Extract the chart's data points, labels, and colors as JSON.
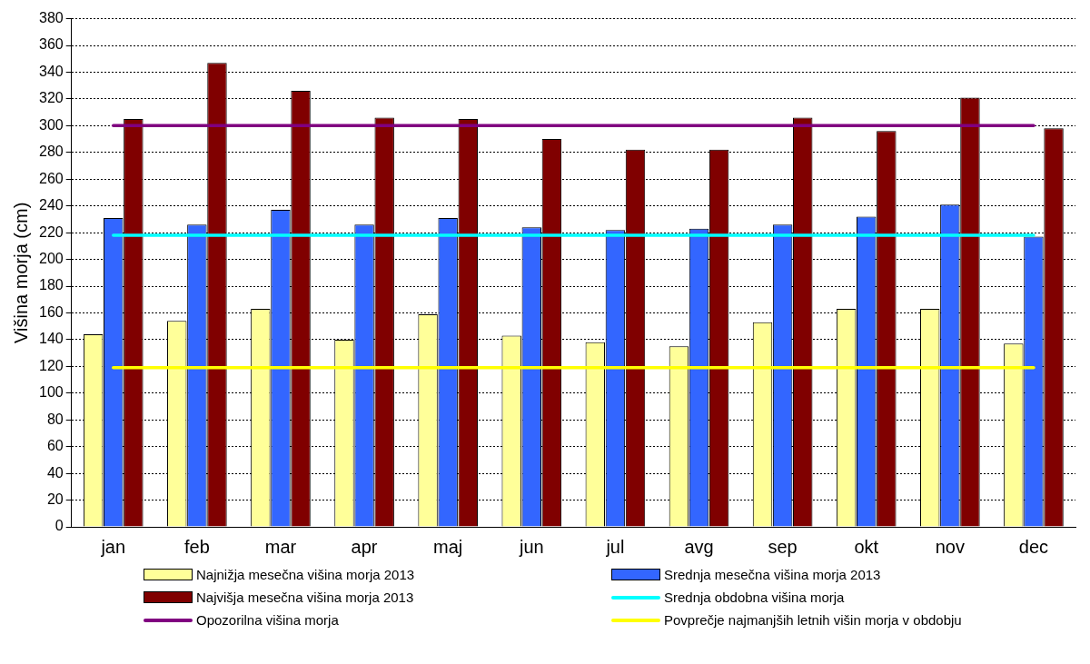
{
  "chart_data": {
    "type": "bar",
    "ylabel": "Višina morja (cm)",
    "categories": [
      "jan",
      "feb",
      "mar",
      "apr",
      "maj",
      "jun",
      "jul",
      "avg",
      "sep",
      "okt",
      "nov",
      "dec"
    ],
    "series": [
      {
        "name": "Najnižja mesečna višina morja 2013",
        "color": "#ffff99",
        "values": [
          144,
          154,
          163,
          140,
          159,
          143,
          138,
          135,
          153,
          163,
          163,
          137
        ]
      },
      {
        "name": "Srednja mesečna višina morja 2013",
        "color": "#3366ff",
        "values": [
          231,
          226,
          237,
          226,
          231,
          224,
          222,
          223,
          226,
          232,
          241,
          217
        ]
      },
      {
        "name": "Najvišja mesečna višina morja 2013",
        "color": "#800000",
        "values": [
          305,
          347,
          326,
          306,
          305,
          290,
          282,
          282,
          306,
          296,
          321,
          298
        ]
      }
    ],
    "ref_lines": [
      {
        "axis": "y",
        "value": 218,
        "label": "Srednja obdobna višina morja",
        "color": "#00ffff"
      },
      {
        "axis": "y",
        "value": 300,
        "label": "Opozorilna višina morja",
        "color": "#800080"
      },
      {
        "axis": "y",
        "value": 119,
        "label": "Povprečje najmanjših letnih višin morja v obdobju",
        "color": "#ffff00"
      }
    ],
    "ylim": [
      0,
      380
    ],
    "yticks": [
      0,
      20,
      40,
      60,
      80,
      100,
      120,
      140,
      160,
      180,
      200,
      220,
      240,
      260,
      280,
      300,
      320,
      340,
      360,
      380
    ],
    "grid": "y",
    "legend": "bottom"
  }
}
